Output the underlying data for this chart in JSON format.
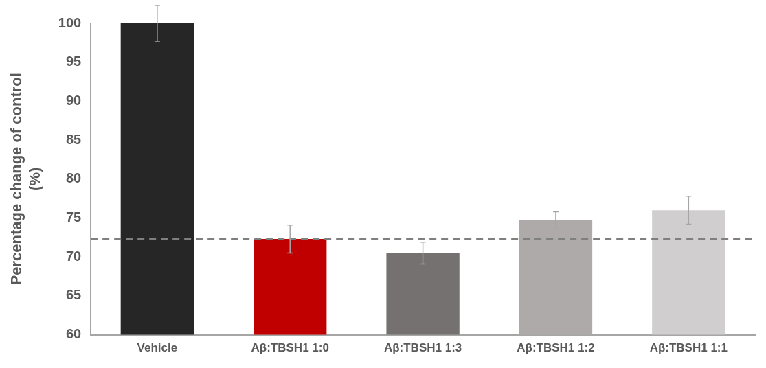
{
  "chart_data": {
    "type": "bar",
    "ylabel": "Percentage change of control\n(%)",
    "categories": [
      "Vehicle",
      "Aβ:TBSH1 1:0",
      "Aβ:TBSH1 1:3",
      "Aβ:TBSH1 1:2",
      "Aβ:TBSH1 1:1"
    ],
    "values": [
      100,
      72.3,
      70.5,
      74.7,
      76.0
    ],
    "colors": [
      "#262626",
      "#c00000",
      "#767171",
      "#aeaaaa",
      "#d0cece"
    ],
    "errors": [
      2.3,
      1.8,
      1.4,
      1.1,
      1.8
    ],
    "ylim": [
      60,
      100
    ],
    "yticks": [
      60,
      65,
      70,
      75,
      80,
      85,
      90,
      95,
      100
    ],
    "grid": false,
    "legend": false,
    "ref_lines": [
      {
        "axis": "y",
        "value": 72.3,
        "color": "#7f7f7f",
        "line_style": "dashed"
      }
    ]
  }
}
